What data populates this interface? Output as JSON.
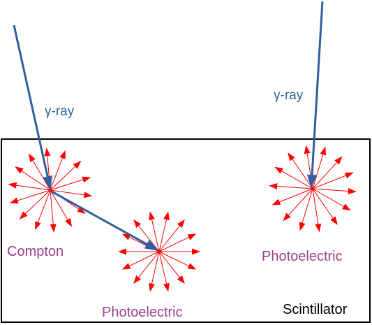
{
  "labels": {
    "gamma_ray_left": "γ-ray",
    "gamma_ray_right": "γ-ray",
    "compton": "Compton",
    "photoelectric_middle": "Photoelectric",
    "photoelectric_right": "Photoelectric",
    "scintillator": "Scintillator"
  },
  "colors": {
    "gamma_ray": "#2e5fa0",
    "photon": "#ff0000",
    "interaction_label": "#9b3f8c",
    "box_border": "#000000",
    "scintillator_label": "#000000"
  }
}
